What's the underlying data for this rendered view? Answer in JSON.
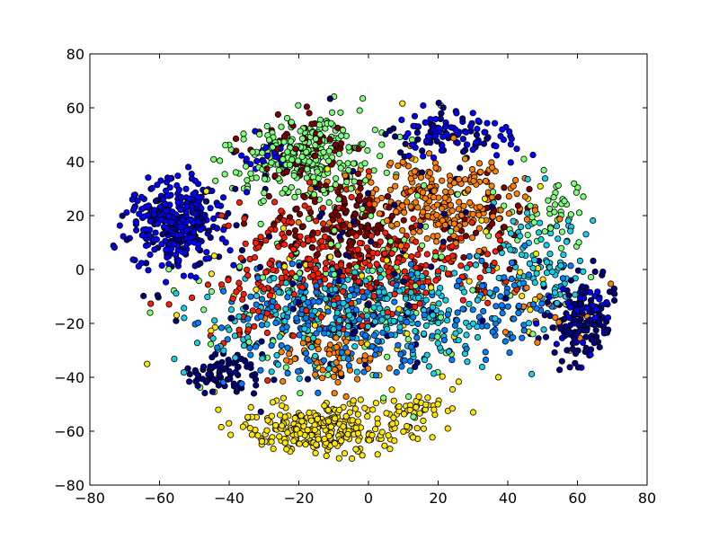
{
  "chart_data": {
    "type": "scatter",
    "title": "",
    "xlabel": "",
    "ylabel": "",
    "xlim": [
      -80,
      80
    ],
    "ylim": [
      -80,
      80
    ],
    "x_ticks": [
      -80,
      -60,
      -40,
      -20,
      0,
      20,
      40,
      60,
      80
    ],
    "y_ticks": [
      -80,
      -60,
      -40,
      -20,
      0,
      20,
      40,
      60,
      80
    ],
    "x_tick_labels": [
      "−80",
      "−60",
      "−40",
      "−20",
      "0",
      "20",
      "40",
      "60",
      "80"
    ],
    "y_tick_labels": [
      "−80",
      "−60",
      "−40",
      "−20",
      "0",
      "20",
      "40",
      "60",
      "80"
    ],
    "grid": false,
    "legend": "none",
    "marker_edge_color": "#000000",
    "series": [
      {
        "color": "#00007f",
        "clusters": [
          {
            "cx": -41,
            "cy": -38,
            "sx": 5,
            "sy": 4,
            "n": 70
          },
          {
            "cx": 62,
            "cy": -20,
            "sx": 6,
            "sy": 8,
            "n": 120
          },
          {
            "cx": 20,
            "cy": 50,
            "sx": 6,
            "sy": 5,
            "n": 40
          },
          {
            "cx": -52,
            "cy": 15,
            "sx": 6,
            "sy": 6,
            "n": 40
          },
          {
            "cx": -8,
            "cy": 0,
            "sx": 25,
            "sy": 25,
            "n": 100
          }
        ]
      },
      {
        "color": "#0000ff",
        "clusters": [
          {
            "cx": -56,
            "cy": 18,
            "sx": 7,
            "sy": 8,
            "n": 300
          },
          {
            "cx": 30,
            "cy": 50,
            "sx": 10,
            "sy": 5,
            "n": 80
          },
          {
            "cx": 62,
            "cy": -18,
            "sx": 5,
            "sy": 7,
            "n": 50
          },
          {
            "cx": -30,
            "cy": 42,
            "sx": 4,
            "sy": 3,
            "n": 25
          }
        ]
      },
      {
        "color": "#0080ff",
        "clusters": [
          {
            "cx": -5,
            "cy": -18,
            "sx": 18,
            "sy": 10,
            "n": 250
          },
          {
            "cx": 38,
            "cy": -10,
            "sx": 10,
            "sy": 10,
            "n": 60
          }
        ]
      },
      {
        "color": "#15cfe6",
        "clusters": [
          {
            "cx": 5,
            "cy": -15,
            "sx": 20,
            "sy": 10,
            "n": 250
          },
          {
            "cx": 50,
            "cy": 5,
            "sx": 8,
            "sy": 10,
            "n": 80
          },
          {
            "cx": -30,
            "cy": -20,
            "sx": 12,
            "sy": 10,
            "n": 60
          }
        ]
      },
      {
        "color": "#7cff79",
        "clusters": [
          {
            "cx": -18,
            "cy": 42,
            "sx": 10,
            "sy": 8,
            "n": 250
          },
          {
            "cx": 55,
            "cy": 25,
            "sx": 6,
            "sy": 8,
            "n": 40
          },
          {
            "cx": 0,
            "cy": 0,
            "sx": 28,
            "sy": 25,
            "n": 120
          }
        ]
      },
      {
        "color": "#ffe600",
        "clusters": [
          {
            "cx": -15,
            "cy": -60,
            "sx": 13,
            "sy": 5,
            "n": 280
          },
          {
            "cx": 15,
            "cy": -53,
            "sx": 5,
            "sy": 3,
            "n": 40
          },
          {
            "cx": 10,
            "cy": -10,
            "sx": 30,
            "sy": 25,
            "n": 80
          }
        ]
      },
      {
        "color": "#ff8000",
        "clusters": [
          {
            "cx": 20,
            "cy": 25,
            "sx": 12,
            "sy": 8,
            "n": 250
          },
          {
            "cx": -10,
            "cy": -32,
            "sx": 6,
            "sy": 6,
            "n": 70
          },
          {
            "cx": 50,
            "cy": -15,
            "sx": 8,
            "sy": 6,
            "n": 20
          }
        ]
      },
      {
        "color": "#ff1e00",
        "clusters": [
          {
            "cx": -12,
            "cy": 5,
            "sx": 14,
            "sy": 12,
            "n": 200
          },
          {
            "cx": 15,
            "cy": 0,
            "sx": 12,
            "sy": 8,
            "n": 100
          },
          {
            "cx": -25,
            "cy": -10,
            "sx": 10,
            "sy": 10,
            "n": 60
          }
        ]
      },
      {
        "color": "#7f0000",
        "clusters": [
          {
            "cx": -5,
            "cy": 15,
            "sx": 10,
            "sy": 8,
            "n": 150
          },
          {
            "cx": -18,
            "cy": 45,
            "sx": 8,
            "sy": 8,
            "n": 60
          },
          {
            "cx": 35,
            "cy": 15,
            "sx": 8,
            "sy": 10,
            "n": 40
          }
        ]
      }
    ]
  }
}
